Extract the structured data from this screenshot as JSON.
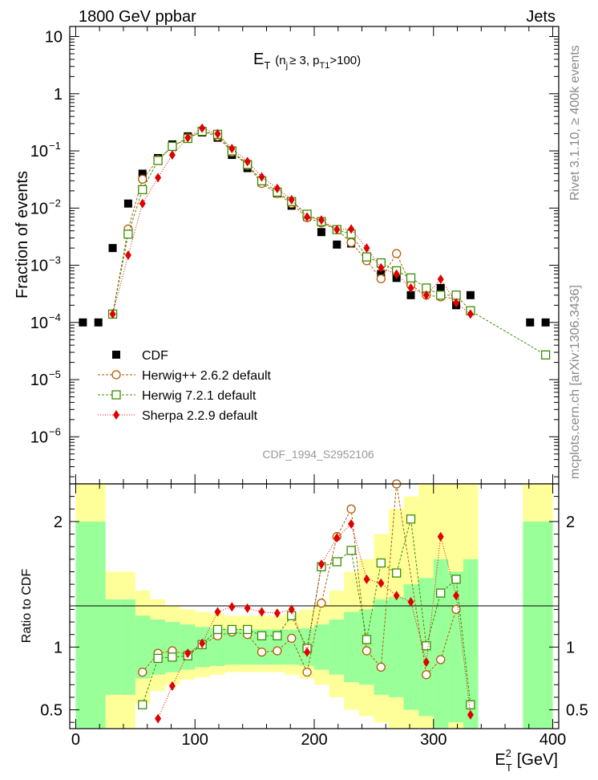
{
  "header": {
    "left": "1800 GeV ppbar",
    "right": "Jets",
    "side_top": "Rivet 3.1.10, ≥ 400k events",
    "side_bottom": "mcplots.cern.ch [arXiv:1306.3436]",
    "watermark": "CDF_1994_S2952106"
  },
  "chart_data": [
    {
      "type": "scatter",
      "panel": "main",
      "title_main": "E",
      "title_sub": "T",
      "title_cond": "(n",
      "title_cond_sub": "j",
      "title_cond_rest": "≥ 3, p",
      "title_cond_sub2": "T1",
      "title_cond_end": ">100)",
      "ylabel": "Fraction of events",
      "yscale": "log",
      "ylim": [
        1.5e-07,
        15
      ],
      "xlim": [
        -5,
        405
      ],
      "y_ticks": [
        {
          "v": 10,
          "label": "10"
        },
        {
          "v": 1,
          "label": "1"
        },
        {
          "v": 0.1,
          "label": "10",
          "exp": "−1"
        },
        {
          "v": 0.01,
          "label": "10",
          "exp": "−2"
        },
        {
          "v": 0.001,
          "label": "10",
          "exp": "−3"
        },
        {
          "v": 0.0001,
          "label": "10",
          "exp": "−4"
        },
        {
          "v": 1e-05,
          "label": "10",
          "exp": "−5"
        },
        {
          "v": 1e-06,
          "label": "10",
          "exp": "−6"
        }
      ],
      "legend": [
        {
          "label": "CDF",
          "color": "#000000",
          "marker": "square"
        },
        {
          "label": "Herwig++ 2.6.2 default",
          "color": "#b35900",
          "marker": "circle"
        },
        {
          "label": "Herwig 7.2.1 default",
          "color": "#3a8c00",
          "marker": "open-square"
        },
        {
          "label": "Sherpa 2.2.9 default",
          "color": "#e00000",
          "marker": "diamond"
        }
      ],
      "series": [
        {
          "name": "CDF",
          "x": [
            6,
            19,
            31,
            44,
            56,
            69,
            81,
            94,
            106,
            119,
            131,
            144,
            156,
            169,
            181,
            194,
            206,
            219,
            231,
            244,
            256,
            269,
            281,
            294,
            306,
            319,
            331,
            381,
            394
          ],
          "values": [
            0.0001,
            0.0001,
            0.002,
            0.012,
            0.04,
            0.075,
            0.13,
            0.18,
            0.21,
            0.17,
            0.085,
            0.05,
            0.028,
            0.018,
            0.011,
            0.007,
            0.0038,
            0.0023,
            0.0024,
            0.0013,
            0.0007,
            0.0006,
            0.0003,
            0.0004,
            0.0004,
            0.0002,
            0.0003,
            0.0001,
            0.0001
          ]
        },
        {
          "name": "Herwig++ 2.6.2 default",
          "x": [
            31,
            44,
            56,
            69,
            81,
            94,
            106,
            119,
            131,
            144,
            156,
            169,
            181,
            194,
            206,
            219,
            231,
            244,
            256,
            269,
            281,
            294,
            306,
            319
          ],
          "values": [
            0.00014,
            0.0043,
            0.032,
            0.07,
            0.12,
            0.17,
            0.22,
            0.18,
            0.095,
            0.056,
            0.027,
            0.018,
            0.012,
            0.0068,
            0.0055,
            0.0042,
            0.0025,
            0.0012,
            0.00058,
            0.0016,
            0.00045,
            0.0003,
            0.00028,
            0.00026
          ]
        },
        {
          "name": "Herwig 7.2.1 default",
          "x": [
            31,
            44,
            56,
            69,
            81,
            94,
            106,
            119,
            131,
            144,
            156,
            169,
            181,
            194,
            206,
            219,
            231,
            244,
            256,
            269,
            281,
            294,
            306,
            319,
            331,
            394
          ],
          "values": [
            0.00014,
            0.0035,
            0.021,
            0.068,
            0.12,
            0.165,
            0.22,
            0.195,
            0.1,
            0.058,
            0.03,
            0.019,
            0.013,
            0.0078,
            0.0058,
            0.0042,
            0.0035,
            0.0014,
            0.0011,
            0.0008,
            0.0006,
            0.0004,
            0.0003,
            0.0003,
            0.00016,
            2.7e-05
          ]
        },
        {
          "name": "Sherpa 2.2.9 default",
          "x": [
            31,
            44,
            56,
            69,
            81,
            94,
            106,
            119,
            131,
            144,
            156,
            169,
            181,
            194,
            206,
            219,
            231,
            244,
            256,
            269,
            281,
            294,
            306,
            319,
            331
          ],
          "values": [
            0.00014,
            0.0015,
            0.012,
            0.034,
            0.085,
            0.17,
            0.25,
            0.2,
            0.11,
            0.065,
            0.035,
            0.022,
            0.014,
            0.007,
            0.0062,
            0.0042,
            0.0043,
            0.002,
            0.0009,
            0.0007,
            0.0004,
            0.0003,
            0.00057,
            0.00022,
            0.00014
          ]
        }
      ]
    },
    {
      "type": "scatter",
      "panel": "ratio",
      "ylabel": "Ratio to CDF",
      "xlabel": "E",
      "xlabel_sub": "T",
      "xlabel_sup": "2",
      "xlabel_unit": "[GeV]",
      "ylim": [
        0.35,
        2.3
      ],
      "xlim": [
        -5,
        405
      ],
      "x_ticks": [
        0,
        100,
        200,
        300,
        400
      ],
      "y_ticks": [
        {
          "v": 0.5,
          "label": "0.5"
        },
        {
          "v": 1,
          "label": "1"
        },
        {
          "v": 2,
          "label": "2"
        }
      ],
      "bands": {
        "edges": [
          0,
          12.5,
          25,
          37.5,
          50,
          62.5,
          75,
          87.5,
          100,
          112.5,
          125,
          137.5,
          150,
          162.5,
          175,
          187.5,
          200,
          212.5,
          225,
          237.5,
          250,
          262.5,
          275,
          287.5,
          300,
          312.5,
          325,
          337.5,
          375,
          387.5,
          400
        ],
        "green_lo": [
          0.35,
          0.35,
          0.62,
          0.62,
          0.75,
          0.78,
          0.8,
          0.82,
          0.84,
          0.85,
          0.86,
          0.86,
          0.86,
          0.86,
          0.86,
          0.85,
          0.82,
          0.78,
          0.72,
          0.7,
          0.62,
          0.6,
          0.5,
          0.45,
          0.35,
          0.4,
          0.35,
          null,
          0.35,
          0.35
        ],
        "green_hi": [
          2,
          2,
          1.38,
          1.38,
          1.25,
          1.22,
          1.2,
          1.18,
          1.16,
          1.15,
          1.14,
          1.14,
          1.14,
          1.14,
          1.14,
          1.15,
          1.18,
          1.22,
          1.28,
          1.3,
          1.38,
          1.4,
          1.5,
          1.55,
          1.7,
          1.6,
          1.7,
          null,
          2,
          2
        ],
        "yellow_lo": [
          0.35,
          0.35,
          0.35,
          0.35,
          0.55,
          0.65,
          0.7,
          0.74,
          0.76,
          0.78,
          0.8,
          0.8,
          0.8,
          0.8,
          0.78,
          0.75,
          0.7,
          0.6,
          0.5,
          0.45,
          0.4,
          0.35,
          0.35,
          0.35,
          0.35,
          0.35,
          0.35,
          null,
          0.35,
          0.35
        ],
        "yellow_hi": [
          2.3,
          2.3,
          1.6,
          1.6,
          1.45,
          1.38,
          1.33,
          1.3,
          1.28,
          1.27,
          1.25,
          1.25,
          1.25,
          1.25,
          1.27,
          1.3,
          1.35,
          1.45,
          1.6,
          1.7,
          1.9,
          2.1,
          2.2,
          2.3,
          2.3,
          2.3,
          2.3,
          null,
          2.3,
          2.3
        ]
      },
      "series": [
        {
          "name": "Herwig++ 2.6.2 default",
          "x": [
            56,
            69,
            81,
            94,
            106,
            119,
            131,
            144,
            156,
            169,
            181,
            194,
            206,
            219,
            231,
            244,
            256,
            269,
            294,
            306,
            319
          ],
          "values": [
            0.8,
            0.95,
            0.97,
            0.94,
            1.02,
            1.09,
            1.12,
            1.1,
            0.96,
            0.97,
            1.07,
            0.8,
            1.35,
            1.88,
            2.1,
            0.97,
            0.84,
            2.3,
            0.78,
            0.9,
            1.3
          ]
        },
        {
          "name": "Herwig 7.2.1 default",
          "x": [
            56,
            69,
            81,
            94,
            106,
            119,
            131,
            144,
            156,
            169,
            181,
            194,
            206,
            219,
            231,
            244,
            256,
            269,
            281,
            294,
            306,
            319,
            331
          ],
          "values": [
            0.54,
            0.91,
            0.92,
            0.93,
            1.02,
            1.14,
            1.14,
            1.14,
            1.09,
            1.09,
            1.25,
            0.99,
            1.64,
            1.68,
            1.77,
            1.06,
            1.67,
            1.59,
            2.02,
            1.01,
            1.43,
            1.54,
            0.54
          ]
        },
        {
          "name": "Sherpa 2.2.9 default",
          "x": [
            69,
            81,
            94,
            106,
            119,
            131,
            144,
            156,
            169,
            181,
            194,
            206,
            219,
            231,
            244,
            256,
            269,
            281,
            294,
            306,
            319,
            331
          ],
          "values": [
            0.43,
            0.69,
            0.95,
            1.03,
            1.28,
            1.32,
            1.31,
            1.28,
            1.27,
            1.3,
            0.96,
            1.66,
            1.87,
            1.98,
            1.54,
            1.51,
            1.41,
            1.36,
            0.88,
            1.88,
            1.41,
            0.46
          ]
        }
      ]
    }
  ]
}
